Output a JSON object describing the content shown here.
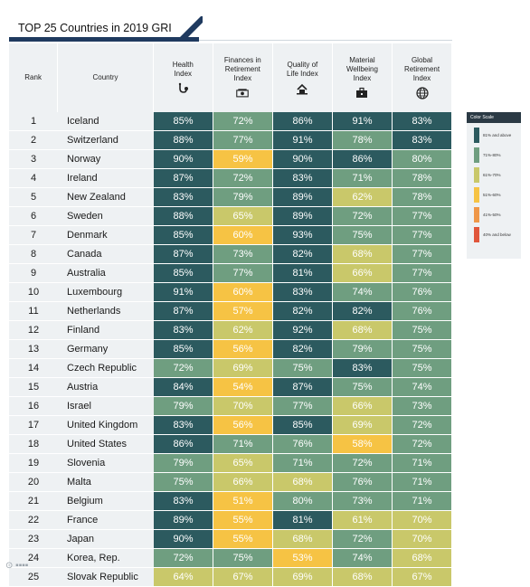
{
  "title": "TOP 25 Countries in 2019 GRI",
  "header": {
    "rank": "Rank",
    "country": "Country",
    "columns": [
      {
        "label": "Health Index",
        "icon": "health-icon"
      },
      {
        "label": "Finances in Retirement Index",
        "icon": "finance-icon"
      },
      {
        "label": "Quality of Life Index",
        "icon": "quality-icon"
      },
      {
        "label": "Material Wellbeing Index",
        "icon": "material-icon"
      },
      {
        "label": "Global Retirement Index",
        "icon": "globe-icon"
      }
    ]
  },
  "legend": {
    "title": "Color Scale",
    "items": [
      {
        "label": "81% and above",
        "color": "#2c5a5f"
      },
      {
        "label": "71%-80%",
        "color": "#6f9e80"
      },
      {
        "label": "61%-70%",
        "color": "#c9c86a"
      },
      {
        "label": "51%-60%",
        "color": "#f6c344"
      },
      {
        "label": "41%-50%",
        "color": "#ef9748"
      },
      {
        "label": "40% and below",
        "color": "#e0563b"
      }
    ]
  },
  "chart_data": {
    "type": "table",
    "title": "TOP 25 Countries in 2019 GRI",
    "columns": [
      "Rank",
      "Country",
      "Health Index",
      "Finances in Retirement Index",
      "Quality of Life Index",
      "Material Wellbeing Index",
      "Global Retirement Index"
    ],
    "rows": [
      {
        "rank": "1",
        "country": "Iceland",
        "values": [
          "85%",
          "72%",
          "86%",
          "91%",
          "83%"
        ]
      },
      {
        "rank": "2",
        "country": "Switzerland",
        "values": [
          "88%",
          "77%",
          "91%",
          "78%",
          "83%"
        ]
      },
      {
        "rank": "3",
        "country": "Norway",
        "values": [
          "90%",
          "59%",
          "90%",
          "86%",
          "80%"
        ]
      },
      {
        "rank": "4",
        "country": "Ireland",
        "values": [
          "87%",
          "72%",
          "83%",
          "71%",
          "78%"
        ]
      },
      {
        "rank": "5",
        "country": "New Zealand",
        "values": [
          "83%",
          "79%",
          "89%",
          "62%",
          "78%"
        ]
      },
      {
        "rank": "6",
        "country": "Sweden",
        "values": [
          "88%",
          "65%",
          "89%",
          "72%",
          "77%"
        ]
      },
      {
        "rank": "7",
        "country": "Denmark",
        "values": [
          "85%",
          "60%",
          "93%",
          "75%",
          "77%"
        ]
      },
      {
        "rank": "8",
        "country": "Canada",
        "values": [
          "87%",
          "73%",
          "82%",
          "68%",
          "77%"
        ]
      },
      {
        "rank": "9",
        "country": "Australia",
        "values": [
          "85%",
          "77%",
          "81%",
          "66%",
          "77%"
        ]
      },
      {
        "rank": "10",
        "country": "Luxembourg",
        "values": [
          "91%",
          "60%",
          "83%",
          "74%",
          "76%"
        ]
      },
      {
        "rank": "11",
        "country": "Netherlands",
        "values": [
          "87%",
          "57%",
          "82%",
          "82%",
          "76%"
        ]
      },
      {
        "rank": "12",
        "country": "Finland",
        "values": [
          "83%",
          "62%",
          "92%",
          "68%",
          "75%"
        ]
      },
      {
        "rank": "13",
        "country": "Germany",
        "values": [
          "85%",
          "56%",
          "82%",
          "79%",
          "75%"
        ]
      },
      {
        "rank": "14",
        "country": "Czech Republic",
        "values": [
          "72%",
          "69%",
          "75%",
          "83%",
          "75%"
        ]
      },
      {
        "rank": "15",
        "country": "Austria",
        "values": [
          "84%",
          "54%",
          "87%",
          "75%",
          "74%"
        ]
      },
      {
        "rank": "16",
        "country": "Israel",
        "values": [
          "79%",
          "70%",
          "77%",
          "66%",
          "73%"
        ]
      },
      {
        "rank": "17",
        "country": "United Kingdom",
        "values": [
          "83%",
          "56%",
          "85%",
          "69%",
          "72%"
        ]
      },
      {
        "rank": "18",
        "country": "United States",
        "values": [
          "86%",
          "71%",
          "76%",
          "58%",
          "72%"
        ]
      },
      {
        "rank": "19",
        "country": "Slovenia",
        "values": [
          "79%",
          "65%",
          "71%",
          "72%",
          "71%"
        ]
      },
      {
        "rank": "20",
        "country": "Malta",
        "values": [
          "75%",
          "66%",
          "68%",
          "76%",
          "71%"
        ]
      },
      {
        "rank": "21",
        "country": "Belgium",
        "values": [
          "83%",
          "51%",
          "80%",
          "73%",
          "71%"
        ]
      },
      {
        "rank": "22",
        "country": "France",
        "values": [
          "89%",
          "55%",
          "81%",
          "61%",
          "70%"
        ]
      },
      {
        "rank": "23",
        "country": "Japan",
        "values": [
          "90%",
          "55%",
          "68%",
          "72%",
          "70%"
        ]
      },
      {
        "rank": "24",
        "country": "Korea, Rep.",
        "values": [
          "72%",
          "75%",
          "53%",
          "74%",
          "68%"
        ]
      },
      {
        "rank": "25",
        "country": "Slovak Republic",
        "values": [
          "64%",
          "67%",
          "69%",
          "68%",
          "67%"
        ]
      }
    ]
  }
}
